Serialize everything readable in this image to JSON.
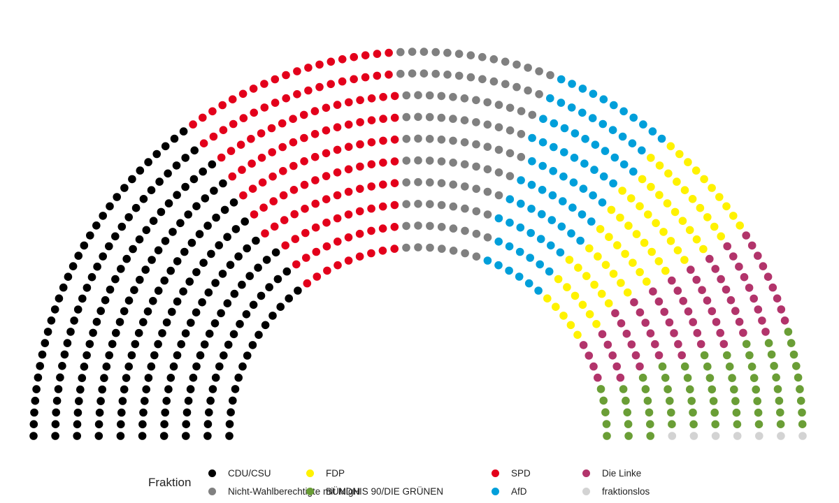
{
  "chart_data": {
    "type": "parliament",
    "title": "",
    "legend": {
      "title": "Fraktion",
      "position": "bottom",
      "entries": [
        {
          "label": "CDU/CSU",
          "color": "#000000"
        },
        {
          "label": "Nicht-Wahlberechtigte mit MigH",
          "color": "#808080"
        },
        {
          "label": "FDP",
          "color": "#FFF200"
        },
        {
          "label": "BÜNDNIS 90/DIE GRÜNEN",
          "color": "#6A9E36"
        },
        {
          "label": "SPD",
          "color": "#E3001B"
        },
        {
          "label": "AfD",
          "color": "#009FDA"
        },
        {
          "label": "Die Linke",
          "color": "#B2346B"
        },
        {
          "label": "fraktionslos",
          "color": "#D3D3D3"
        }
      ]
    },
    "seat_order": [
      "CDU/CSU",
      "SPD",
      "Nicht-Wahlberechtigte mit MigH",
      "AfD",
      "FDP",
      "Die Linke",
      "BÜNDNIS 90/DIE GRÜNEN",
      "fraktionslos"
    ],
    "rows": 10,
    "seats": [
      {
        "party": "CDU/CSU",
        "seats": 231
      },
      {
        "party": "SPD",
        "seats": 142
      },
      {
        "party": "Nicht-Wahlberechtigte mit MigH",
        "seats": 103
      },
      {
        "party": "AfD",
        "seats": 83
      },
      {
        "party": "FDP",
        "seats": 76
      },
      {
        "party": "Die Linke",
        "seats": 69
      },
      {
        "party": "BÜNDNIS 90/DIE GRÜNEN",
        "seats": 67
      },
      {
        "party": "fraktionslos",
        "seats": 7
      }
    ]
  }
}
